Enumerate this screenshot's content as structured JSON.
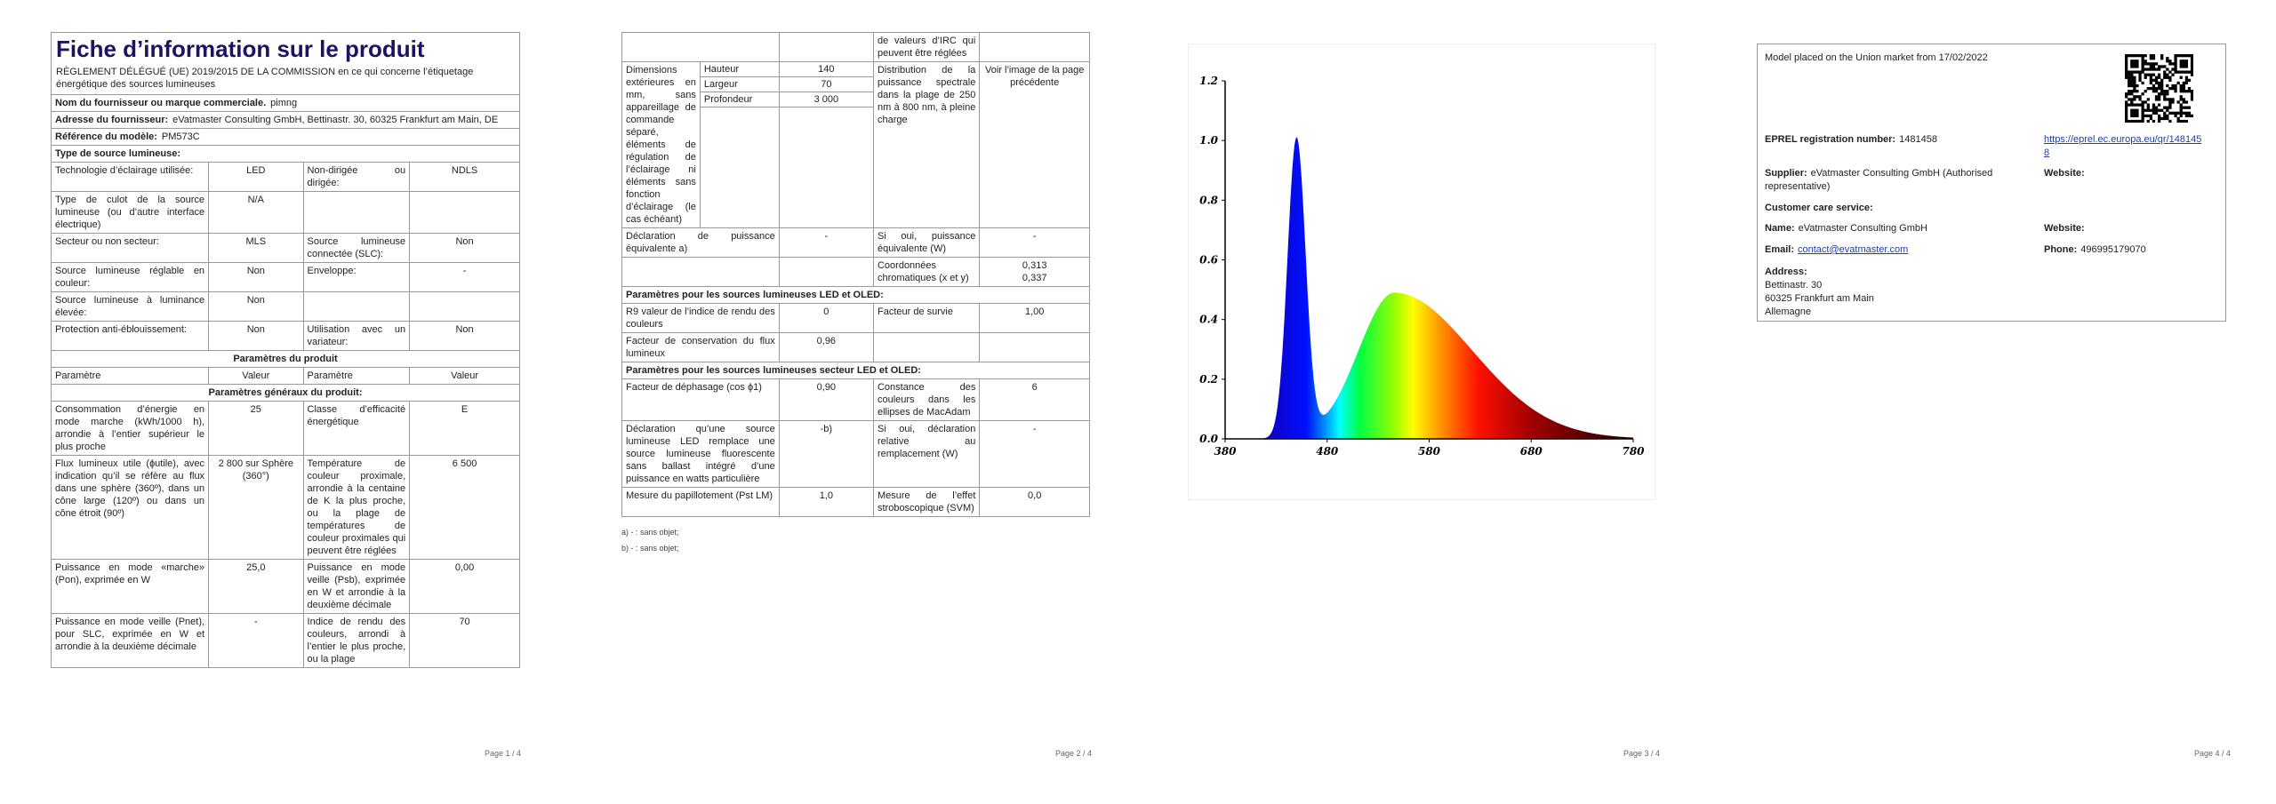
{
  "page1": {
    "title": "Fiche d’information sur le produit",
    "subtitle": "RÈGLEMENT DÉLÉGUÉ (UE) 2019/2015 DE LA COMMISSION en ce qui concerne l’étiquetage énergétique des sources lumineuses",
    "rows": [
      {
        "label": "Nom du fournisseur ou marque commerciale.",
        "value": "pimng"
      },
      {
        "label": "Adresse du fournisseur:",
        "value": "eVatmaster Consulting GmbH, Bettinastr. 30, 60325 Frankfurt am Main, DE"
      },
      {
        "label": "Référence du modèle:",
        "value": "PM573C"
      },
      {
        "heading": "Type de source lumineuse:"
      },
      [
        "Technologie d’éclairage utilisée:",
        "LED",
        "Non-dirigée ou dirigée:",
        "NDLS"
      ],
      [
        "Type de culot de la source lumineuse (ou d’autre interface électrique)",
        "N/A",
        null,
        null
      ],
      [
        "Secteur ou non secteur:",
        "MLS",
        "Source lumineuse connectée (SLC):",
        "Non"
      ],
      [
        "Source lumineuse réglable en couleur:",
        "Non",
        "Enveloppe:",
        "-"
      ],
      [
        "Source lumineuse à luminance élevée:",
        "Non",
        null,
        null
      ],
      [
        "Protection anti-éblouissement:",
        "Non",
        "Utilisation avec un variateur:",
        "Non"
      ],
      {
        "section": "Paramètres du produit"
      },
      [
        "Paramètre",
        "Valeur",
        "Paramètre",
        "Valeur"
      ],
      {
        "section": "Paramètres généraux du produit:"
      },
      [
        "Consommation d’énergie en mode marche (kWh/1000 h), arrondie à l’entier supérieur le plus proche",
        "25",
        "Classe d’efficacité énergétique",
        "E"
      ],
      [
        "Flux lumineux utile (ɸutile), avec indication qu’il se réfère au flux dans une sphère (360º), dans un cône large (120º) ou dans un cône étroit (90º)",
        "2 800 sur Sphère (360°)",
        "Température de couleur proximale, arrondie à la centaine de K la plus proche, ou la plage de températures de couleur proximales qui peuvent être réglées",
        "6 500"
      ],
      [
        "Puissance en mode «marche» (Pon), exprimée en W",
        "25,0",
        "Puissance en mode veille (Psb), exprimée en W et arrondie à la deuxième décimale",
        "0,00"
      ],
      [
        "Puissance en mode veille (Pnet), pour SLC, exprimée en W et arrondie à la deuxième décimale",
        "-",
        "Indice de rendu des couleurs, arrondi à l’entier le plus proche, ou la plage",
        "70"
      ]
    ],
    "footer": "Page 1 / 4"
  },
  "page2": {
    "rows": [
      [
        null,
        null,
        "de valeurs d’IRC qui peuvent être réglées",
        null
      ],
      {
        "label": "Dimensions extérieures en mm, sans appareillage de commande séparé, éléments de régulation de l’éclairage ni éléments sans fonction d’éclairage (le cas échéant)",
        "dimensions": [
          {
            "name": "Hauteur",
            "value": "140"
          },
          {
            "name": "Largeur",
            "value": "70"
          },
          {
            "name": "Profondeur",
            "value": "3 000"
          }
        ],
        "label2": "Distribution de la puissance spectrale dans la plage de 250 nm à 800 nm, à pleine charge",
        "value2": "Voir l’image de la page précédente"
      },
      [
        "Déclaration de puissance équivalente a)",
        "-",
        "Si oui, puissance équivalente (W)",
        "-"
      ],
      [
        null,
        null,
        "Coordonnées chromatiques (x et y)",
        [
          "0,313",
          "0,337"
        ]
      ],
      {
        "heading": "Paramètres pour les sources lumineuses LED et OLED:"
      },
      [
        "R9 valeur de l’indice de rendu des couleurs",
        "0",
        "Facteur de survie",
        "1,00"
      ],
      [
        "Facteur de conservation du flux lumineux",
        "0,96",
        null,
        null
      ],
      {
        "heading": "Paramètres pour les sources lumineuses secteur LED et OLED:"
      },
      [
        "Facteur de déphasage (cos ϕ1)",
        "0,90",
        "Constance des couleurs dans les ellipses de MacAdam",
        "6"
      ],
      [
        "Déclaration qu’une source lumineuse LED remplace une source lumineuse fluorescente sans ballast intégré d’une puissance en watts particulière",
        "-b)",
        "Si oui, déclaration relative au remplacement (W)",
        "-"
      ],
      [
        "Mesure du papillotement (Pst LM)",
        "1,0",
        "Mesure de l’effet stroboscopique (SVM)",
        "0,0"
      ]
    ],
    "footnotes": [
      "a) - : sans objet;",
      "b) - : sans objet;"
    ],
    "footer": "Page 2 / 4"
  },
  "page3": {
    "spectrum": {
      "xticks": [
        "380",
        "480",
        "580",
        "680",
        "780"
      ],
      "yticks": [
        "0.0",
        "0.2",
        "0.4",
        "0.6",
        "0.8",
        "1.0",
        "1.2"
      ]
    },
    "footer": "Page 3 / 4"
  },
  "page4": {
    "placed": "Model placed on the Union market from 17/02/2022",
    "eprel_label": "EPREL registration number:",
    "eprel_number": "1481458",
    "eprel_link": "https://eprel.ec.europa.eu/qr/1481458",
    "supplier_label": "Supplier:",
    "supplier": "eVatmaster Consulting GmbH (Authorised representative)",
    "supplier_website_label": "Website:",
    "customer_care": "Customer care service:",
    "name_label": "Name:",
    "name": "eVatmaster Consulting GmbH",
    "website_label": "Website:",
    "email_label": "Email:",
    "email": "contact@evatmaster.com",
    "phone_label": "Phone:",
    "phone": "496995179070",
    "address_label": "Address:",
    "address": [
      "Bettinastr. 30",
      "60325 Frankfurt am Main",
      "Allemagne"
    ],
    "footer": "Page 4 / 4"
  }
}
